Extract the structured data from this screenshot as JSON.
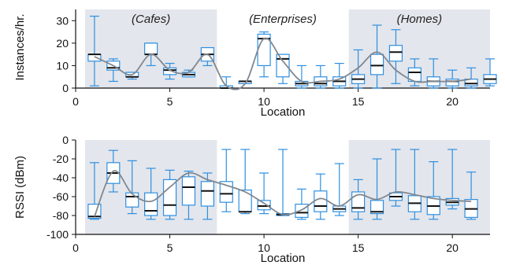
{
  "chart_data": [
    {
      "type": "box",
      "xlabel": "Location",
      "ylabel": "Instances/hr.",
      "xlim": [
        0,
        22
      ],
      "ylim": [
        0,
        35
      ],
      "xticks": [
        0,
        5,
        10,
        15,
        20
      ],
      "yticks": [
        0,
        10,
        20,
        30
      ],
      "regions": [
        {
          "label": "(Cafes)",
          "from": 0.5,
          "to": 7.5,
          "shaded": true
        },
        {
          "label": "(Enterprises)",
          "from": 7.5,
          "to": 14.5,
          "shaded": false
        },
        {
          "label": "(Homes)",
          "from": 14.5,
          "to": 22,
          "shaded": true
        }
      ],
      "boxes": [
        {
          "x": 1,
          "min": 1,
          "q1": 12,
          "median": 15,
          "q3": 15,
          "max": 32
        },
        {
          "x": 2,
          "min": 3,
          "q1": 8,
          "median": 9,
          "q3": 12,
          "max": 13
        },
        {
          "x": 3,
          "min": 4,
          "q1": 5,
          "median": 5,
          "q3": 7,
          "max": 7
        },
        {
          "x": 4,
          "min": 10,
          "q1": 15,
          "median": 15,
          "q3": 20,
          "max": 20
        },
        {
          "x": 5,
          "min": 4,
          "q1": 6,
          "median": 8,
          "q3": 9,
          "max": 11
        },
        {
          "x": 6,
          "min": 5,
          "q1": 5,
          "median": 6,
          "q3": 7,
          "max": 8
        },
        {
          "x": 7,
          "min": 10,
          "q1": 12,
          "median": 15,
          "q3": 18,
          "max": 18
        },
        {
          "x": 8,
          "min": 0,
          "q1": 0,
          "median": 0,
          "q3": 1,
          "max": 5
        },
        {
          "x": 9,
          "min": 2,
          "q1": 2,
          "median": 3,
          "q3": 3,
          "max": 3
        },
        {
          "x": 10,
          "min": 5,
          "q1": 10,
          "median": 22,
          "q3": 24,
          "max": 25
        },
        {
          "x": 11,
          "min": 2,
          "q1": 5,
          "median": 13,
          "q3": 15,
          "max": 15
        },
        {
          "x": 12,
          "min": 0,
          "q1": 1,
          "median": 2,
          "q3": 3,
          "max": 10
        },
        {
          "x": 13,
          "min": 0,
          "q1": 1,
          "median": 2,
          "q3": 5,
          "max": 10
        },
        {
          "x": 14,
          "min": 0,
          "q1": 1,
          "median": 3,
          "q3": 5,
          "max": 11
        },
        {
          "x": 15,
          "min": 0,
          "q1": 2,
          "median": 4,
          "q3": 6,
          "max": 17
        },
        {
          "x": 16,
          "min": 0,
          "q1": 6,
          "median": 10,
          "q3": 15,
          "max": 28
        },
        {
          "x": 17,
          "min": 2,
          "q1": 12,
          "median": 16,
          "q3": 19,
          "max": 26
        },
        {
          "x": 18,
          "min": 1,
          "q1": 3,
          "median": 7,
          "q3": 9,
          "max": 13
        },
        {
          "x": 19,
          "min": 0,
          "q1": 1,
          "median": 3,
          "q3": 5,
          "max": 13
        },
        {
          "x": 20,
          "min": 0,
          "q1": 1,
          "median": 3,
          "q3": 4,
          "max": 8
        },
        {
          "x": 21,
          "min": 0,
          "q1": 1,
          "median": 2,
          "q3": 4,
          "max": 9
        },
        {
          "x": 22,
          "min": 1,
          "q1": 2,
          "median": 4,
          "q3": 6,
          "max": 13
        }
      ],
      "trend": [
        [
          1,
          14
        ],
        [
          2,
          10
        ],
        [
          3,
          6
        ],
        [
          4,
          15
        ],
        [
          5,
          8
        ],
        [
          6,
          7
        ],
        [
          7,
          15
        ],
        [
          8,
          1
        ],
        [
          9,
          2
        ],
        [
          10,
          22
        ],
        [
          11,
          12
        ],
        [
          12,
          3
        ],
        [
          13,
          3
        ],
        [
          14,
          4
        ],
        [
          15,
          9
        ],
        [
          16,
          16
        ],
        [
          17,
          8
        ],
        [
          18,
          3
        ],
        [
          19,
          3
        ],
        [
          20,
          3
        ],
        [
          21,
          4
        ]
      ]
    },
    {
      "type": "box",
      "xlabel": "Location",
      "ylabel": "RSSI (dBm)",
      "xlim": [
        0,
        22
      ],
      "ylim": [
        -100,
        0
      ],
      "xticks": [
        0,
        5,
        10,
        15,
        20
      ],
      "yticks": [
        0,
        -20,
        -40,
        -60,
        -80,
        -100
      ],
      "regions": [
        {
          "label": "",
          "from": 0.5,
          "to": 7.5,
          "shaded": true
        },
        {
          "label": "",
          "from": 7.5,
          "to": 14.5,
          "shaded": false
        },
        {
          "label": "",
          "from": 14.5,
          "to": 22,
          "shaded": true
        }
      ],
      "boxes": [
        {
          "x": 1,
          "min": -84,
          "q1": -83,
          "median": -81,
          "q3": -68,
          "max": -24
        },
        {
          "x": 2,
          "min": -55,
          "q1": -46,
          "median": -35,
          "q3": -24,
          "max": -11
        },
        {
          "x": 3,
          "min": -78,
          "q1": -71,
          "median": -60,
          "q3": -56,
          "max": -22
        },
        {
          "x": 4,
          "min": -84,
          "q1": -80,
          "median": -75,
          "q3": -56,
          "max": -30
        },
        {
          "x": 5,
          "min": -84,
          "q1": -80,
          "median": -69,
          "q3": -42,
          "max": -32
        },
        {
          "x": 6,
          "min": -84,
          "q1": -69,
          "median": -50,
          "q3": -39,
          "max": -33
        },
        {
          "x": 7,
          "min": -84,
          "q1": -70,
          "median": -54,
          "q3": -44,
          "max": -35
        },
        {
          "x": 8,
          "min": -76,
          "q1": -66,
          "median": -57,
          "q3": -44,
          "max": -10
        },
        {
          "x": 9,
          "min": -78,
          "q1": -76,
          "median": -76,
          "q3": -53,
          "max": -10
        },
        {
          "x": 10,
          "min": -78,
          "q1": -74,
          "median": -70,
          "q3": -64,
          "max": -35
        },
        {
          "x": 11,
          "min": -80,
          "q1": -80,
          "median": -79,
          "q3": -78,
          "max": -10
        },
        {
          "x": 12,
          "min": -84,
          "q1": -82,
          "median": -77,
          "q3": -68,
          "max": -52
        },
        {
          "x": 13,
          "min": -84,
          "q1": -76,
          "median": -70,
          "q3": -54,
          "max": -36
        },
        {
          "x": 14,
          "min": -80,
          "q1": -76,
          "median": -73,
          "q3": -70,
          "max": -25
        },
        {
          "x": 15,
          "min": -84,
          "q1": -76,
          "median": -72,
          "q3": -55,
          "max": -42
        },
        {
          "x": 16,
          "min": -84,
          "q1": -78,
          "median": -76,
          "q3": -64,
          "max": -20
        },
        {
          "x": 17,
          "min": -70,
          "q1": -64,
          "median": -60,
          "q3": -56,
          "max": -10
        },
        {
          "x": 18,
          "min": -84,
          "q1": -76,
          "median": -67,
          "q3": -59,
          "max": -10
        },
        {
          "x": 19,
          "min": -84,
          "q1": -79,
          "median": -70,
          "q3": -60,
          "max": -23
        },
        {
          "x": 20,
          "min": -73,
          "q1": -69,
          "median": -66,
          "q3": -62,
          "max": -10
        },
        {
          "x": 21,
          "min": -84,
          "q1": -82,
          "median": -73,
          "q3": -63,
          "max": -34
        }
      ],
      "trend": [
        [
          1,
          -81
        ],
        [
          2,
          -33
        ],
        [
          3,
          -57
        ],
        [
          4,
          -65
        ],
        [
          5,
          -50
        ],
        [
          6,
          -35
        ],
        [
          7,
          -42
        ],
        [
          8,
          -48
        ],
        [
          9,
          -55
        ],
        [
          10,
          -67
        ],
        [
          11,
          -79
        ],
        [
          12,
          -74
        ],
        [
          13,
          -62
        ],
        [
          14,
          -70
        ],
        [
          15,
          -58
        ],
        [
          16,
          -63
        ],
        [
          17,
          -55
        ],
        [
          18,
          -58
        ],
        [
          19,
          -62
        ],
        [
          20,
          -64
        ],
        [
          21,
          -65
        ]
      ]
    }
  ]
}
